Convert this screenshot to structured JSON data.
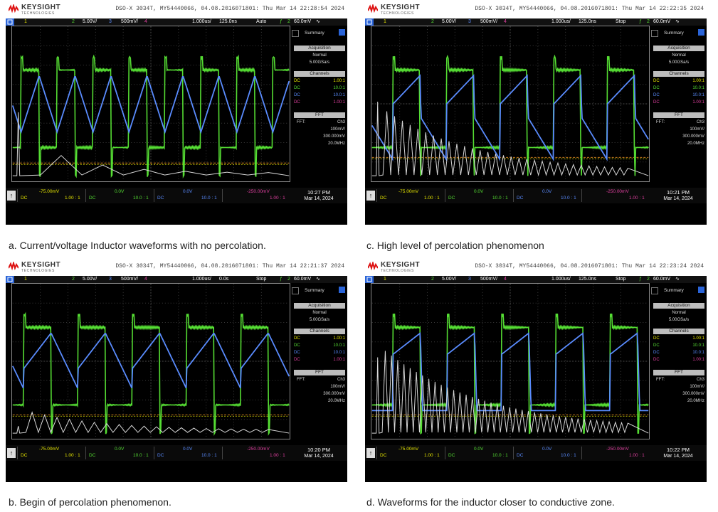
{
  "colors": {
    "ch1": "#e6e600",
    "ch2": "#55dd33",
    "ch3": "#5a8cff",
    "ch4": "#e040a0",
    "fft": "#d8d8d8",
    "trigger": "#e08a20",
    "menu_header": "#bdbdbd"
  },
  "brand": {
    "name": "KEYSIGHT",
    "sub": "TECHNOLOGIES"
  },
  "common": {
    "ch1_num": "1",
    "ch2_num": "2",
    "ch2_scale": "5.00V/",
    "ch3_num": "3",
    "ch3_scale": "500mV/",
    "ch4_num": "4",
    "menu": {
      "summary": "Summary",
      "acquisition_header": "Acquisition",
      "mode": "Normal",
      "rate": "5.00GSa/s",
      "channels_header": "Channels",
      "channels": [
        {
          "coupling": "DC",
          "probe": "1.00:1"
        },
        {
          "coupling": "DC",
          "probe": "10.0:1"
        },
        {
          "coupling": "DC",
          "probe": "10.0:1"
        },
        {
          "coupling": "DC",
          "probe": "1.00:1"
        }
      ],
      "fft_header": "FFT",
      "fft_label": "FFT:",
      "fft_source": "Ch3",
      "fft_scale": "100mV/",
      "fft_center": "300.000mV",
      "fft_span": "20.0MHz"
    },
    "bottom": {
      "ch1_offset": "-75.00mV",
      "ch1_coupling": "DC",
      "ch1_probe": "1.00 : 1",
      "ch2_offset": "0.0V",
      "ch2_coupling": "DC",
      "ch2_probe": "10.0 : 1",
      "ch3_offset": "0.0V",
      "ch3_coupling": "DC",
      "ch3_probe": "10.0 : 1",
      "ch4_offset": "-250.00mV",
      "ch4_probe": "1.00 : 1"
    }
  },
  "panels": [
    {
      "id": "a",
      "model": "DSO-X 3034T, MY54440066, 04.08.2016071801: Thu Mar 14 22:28:54 2024",
      "timebase": "1.000us/",
      "delay": "125.0ns",
      "run": "Auto",
      "trig_ch": "2",
      "trig_level": "60.0mV",
      "time": "10:27 PM",
      "date": "Mar 14, 2024",
      "caption": "a. Current/voltage Inductor waveforms with no percolation."
    },
    {
      "id": "c",
      "model": "DSO-X 3034T, MY54440066, 04.08.2016071801: Thu Mar 14 22:22:35 2024",
      "timebase": "1.000us/",
      "delay": "125.0ns",
      "run": "Stop",
      "trig_ch": "2",
      "trig_level": "60.0mV",
      "time": "10:21 PM",
      "date": "Mar 14, 2024",
      "caption": "c. High level of percolation phenomenon"
    },
    {
      "id": "b",
      "model": "DSO-X 3034T, MY54440066, 04.08.2016071801: Thu Mar 14 22:21:37 2024",
      "timebase": "1.000us/",
      "delay": "0.0s",
      "run": "Stop",
      "trig_ch": "2",
      "trig_level": "60.0mV",
      "time": "10:20 PM",
      "date": "Mar 14, 2024",
      "caption": "b. Begin of percolation phenomenon."
    },
    {
      "id": "d",
      "model": "DSO-X 3034T, MY54440066, 04.08.2016071801: Thu Mar 14 22:23:24 2024",
      "timebase": "1.000us/",
      "delay": "125.0ns",
      "run": "Stop",
      "trig_ch": "2",
      "trig_level": "60.0mV",
      "time": "10:22 PM",
      "date": "Mar 14, 2024",
      "caption": "d. Waveforms for the inductor closer to conductive zone."
    }
  ]
}
